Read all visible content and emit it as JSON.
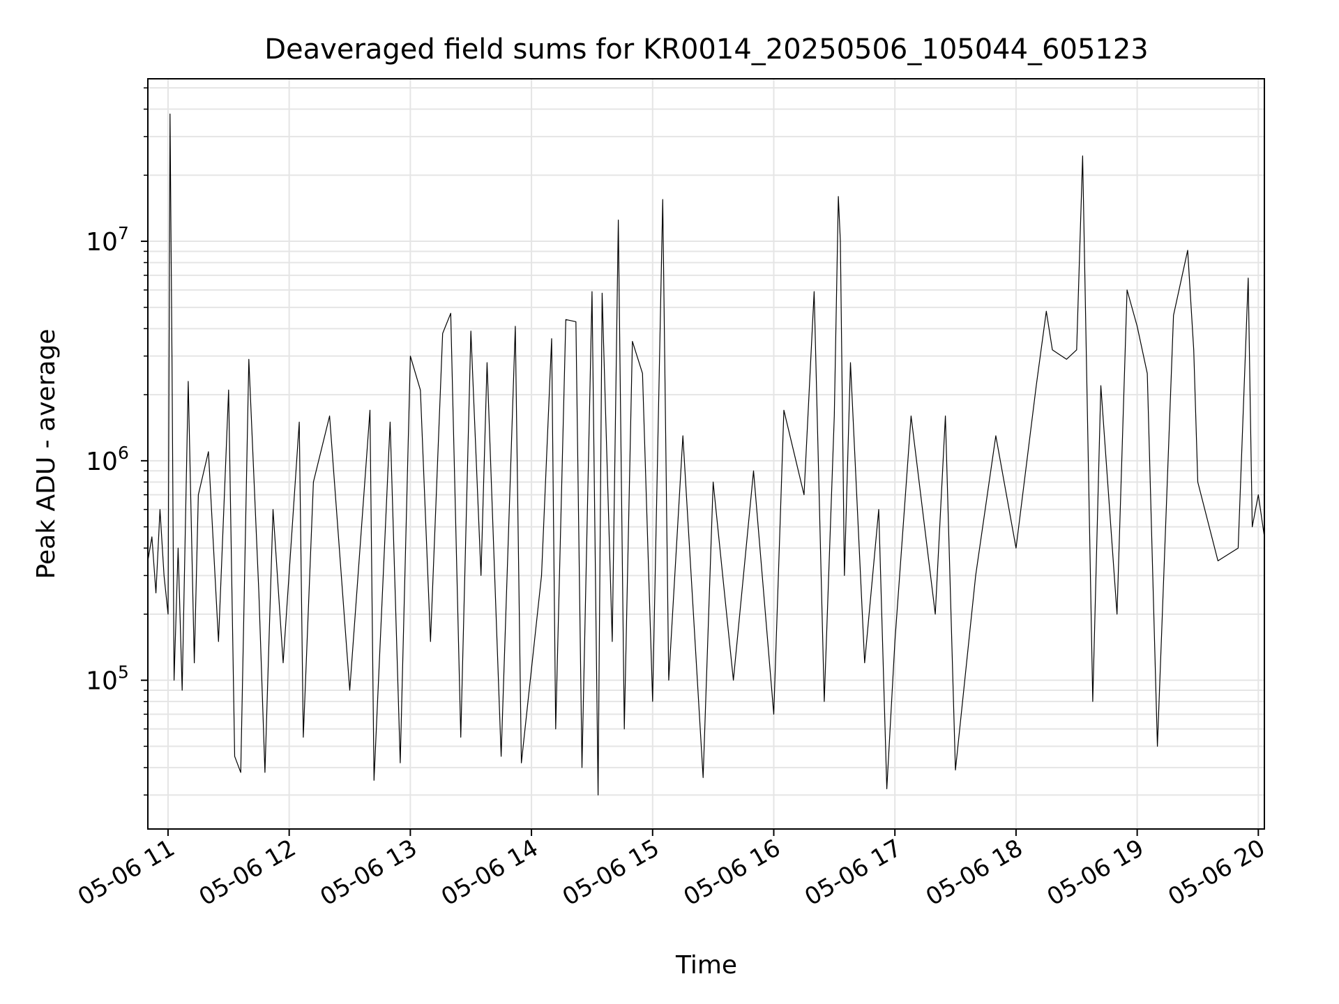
{
  "chart_data": {
    "type": "line",
    "title": "Deaveraged field sums for KR0014_20250506_105044_605123",
    "xlabel": "Time",
    "ylabel": "Peak ADU - average",
    "yscale": "log",
    "grid": true,
    "series_color": "#000000",
    "grid_color": "#e5e5e5",
    "xlim": [
      "2025-05-06T10:50",
      "2025-05-06T20:03"
    ],
    "ylim": [
      21000,
      55000000
    ],
    "x_ticks": [
      "05-06 11",
      "05-06 12",
      "05-06 13",
      "05-06 14",
      "05-06 15",
      "05-06 16",
      "05-06 17",
      "05-06 18",
      "05-06 19",
      "05-06 20"
    ],
    "y_ticks": [
      {
        "value": 100000,
        "base": "10",
        "exp": "5"
      },
      {
        "value": 1000000,
        "base": "10",
        "exp": "6"
      },
      {
        "value": 10000000,
        "base": "10",
        "exp": "7"
      }
    ],
    "series": [
      {
        "points": [
          [
            "2025-05-06T10:50",
            350000
          ],
          [
            "2025-05-06T10:52",
            450000
          ],
          [
            "2025-05-06T10:54",
            250000
          ],
          [
            "2025-05-06T10:56",
            600000
          ],
          [
            "2025-05-06T10:58",
            300000
          ],
          [
            "2025-05-06T11:00",
            200000
          ],
          [
            "2025-05-06T11:01",
            38000000
          ],
          [
            "2025-05-06T11:02",
            2700000
          ],
          [
            "2025-05-06T11:03",
            100000
          ],
          [
            "2025-05-06T11:05",
            400000
          ],
          [
            "2025-05-06T11:07",
            90000
          ],
          [
            "2025-05-06T11:10",
            2300000
          ],
          [
            "2025-05-06T11:13",
            120000
          ],
          [
            "2025-05-06T11:15",
            700000
          ],
          [
            "2025-05-06T11:20",
            1100000
          ],
          [
            "2025-05-06T11:25",
            150000
          ],
          [
            "2025-05-06T11:30",
            2100000
          ],
          [
            "2025-05-06T11:33",
            45000
          ],
          [
            "2025-05-06T11:36",
            38000
          ],
          [
            "2025-05-06T11:40",
            2900000
          ],
          [
            "2025-05-06T11:45",
            250000
          ],
          [
            "2025-05-06T11:48",
            38000
          ],
          [
            "2025-05-06T11:52",
            600000
          ],
          [
            "2025-05-06T11:57",
            120000
          ],
          [
            "2025-05-06T12:05",
            1500000
          ],
          [
            "2025-05-06T12:07",
            55000
          ],
          [
            "2025-05-06T12:12",
            800000
          ],
          [
            "2025-05-06T12:20",
            1600000
          ],
          [
            "2025-05-06T12:30",
            90000
          ],
          [
            "2025-05-06T12:40",
            1700000
          ],
          [
            "2025-05-06T12:42",
            35000
          ],
          [
            "2025-05-06T12:50",
            1500000
          ],
          [
            "2025-05-06T12:55",
            42000
          ],
          [
            "2025-05-06T13:00",
            3000000
          ],
          [
            "2025-05-06T13:05",
            2100000
          ],
          [
            "2025-05-06T13:10",
            150000
          ],
          [
            "2025-05-06T13:16",
            3800000
          ],
          [
            "2025-05-06T13:20",
            4700000
          ],
          [
            "2025-05-06T13:25",
            55000
          ],
          [
            "2025-05-06T13:30",
            3900000
          ],
          [
            "2025-05-06T13:35",
            300000
          ],
          [
            "2025-05-06T13:38",
            2800000
          ],
          [
            "2025-05-06T13:45",
            45000
          ],
          [
            "2025-05-06T13:52",
            4100000
          ],
          [
            "2025-05-06T13:55",
            42000
          ],
          [
            "2025-05-06T14:05",
            300000
          ],
          [
            "2025-05-06T14:10",
            3600000
          ],
          [
            "2025-05-06T14:12",
            60000
          ],
          [
            "2025-05-06T14:17",
            4400000
          ],
          [
            "2025-05-06T14:22",
            4300000
          ],
          [
            "2025-05-06T14:25",
            40000
          ],
          [
            "2025-05-06T14:30",
            5900000
          ],
          [
            "2025-05-06T14:33",
            30000
          ],
          [
            "2025-05-06T14:35",
            5800000
          ],
          [
            "2025-05-06T14:40",
            150000
          ],
          [
            "2025-05-06T14:43",
            12500000
          ],
          [
            "2025-05-06T14:46",
            60000
          ],
          [
            "2025-05-06T14:50",
            3500000
          ],
          [
            "2025-05-06T14:55",
            2500000
          ],
          [
            "2025-05-06T15:00",
            80000
          ],
          [
            "2025-05-06T15:05",
            15500000
          ],
          [
            "2025-05-06T15:08",
            100000
          ],
          [
            "2025-05-06T15:15",
            1300000
          ],
          [
            "2025-05-06T15:25",
            36000
          ],
          [
            "2025-05-06T15:30",
            800000
          ],
          [
            "2025-05-06T15:40",
            100000
          ],
          [
            "2025-05-06T15:50",
            900000
          ],
          [
            "2025-05-06T16:00",
            70000
          ],
          [
            "2025-05-06T16:05",
            1700000
          ],
          [
            "2025-05-06T16:15",
            700000
          ],
          [
            "2025-05-06T16:20",
            5900000
          ],
          [
            "2025-05-06T16:25",
            80000
          ],
          [
            "2025-05-06T16:30",
            1600000
          ],
          [
            "2025-05-06T16:32",
            16000000
          ],
          [
            "2025-05-06T16:33",
            10000000
          ],
          [
            "2025-05-06T16:35",
            300000
          ],
          [
            "2025-05-06T16:38",
            2800000
          ],
          [
            "2025-05-06T16:45",
            120000
          ],
          [
            "2025-05-06T16:52",
            600000
          ],
          [
            "2025-05-06T16:56",
            32000
          ],
          [
            "2025-05-06T17:00",
            150000
          ],
          [
            "2025-05-06T17:08",
            1600000
          ],
          [
            "2025-05-06T17:20",
            200000
          ],
          [
            "2025-05-06T17:25",
            1600000
          ],
          [
            "2025-05-06T17:30",
            39000
          ],
          [
            "2025-05-06T17:40",
            300000
          ],
          [
            "2025-05-06T17:50",
            1300000
          ],
          [
            "2025-05-06T18:00",
            400000
          ],
          [
            "2025-05-06T18:10",
            2200000
          ],
          [
            "2025-05-06T18:15",
            4800000
          ],
          [
            "2025-05-06T18:18",
            3200000
          ],
          [
            "2025-05-06T18:25",
            2900000
          ],
          [
            "2025-05-06T18:30",
            3200000
          ],
          [
            "2025-05-06T18:33",
            24500000
          ],
          [
            "2025-05-06T18:38",
            80000
          ],
          [
            "2025-05-06T18:42",
            2200000
          ],
          [
            "2025-05-06T18:50",
            200000
          ],
          [
            "2025-05-06T18:55",
            6000000
          ],
          [
            "2025-05-06T19:00",
            4100000
          ],
          [
            "2025-05-06T19:05",
            2500000
          ],
          [
            "2025-05-06T19:10",
            50000
          ],
          [
            "2025-05-06T19:18",
            4600000
          ],
          [
            "2025-05-06T19:25",
            9100000
          ],
          [
            "2025-05-06T19:28",
            3200000
          ],
          [
            "2025-05-06T19:30",
            800000
          ],
          [
            "2025-05-06T19:40",
            350000
          ],
          [
            "2025-05-06T19:50",
            400000
          ],
          [
            "2025-05-06T19:55",
            6800000
          ],
          [
            "2025-05-06T19:57",
            500000
          ],
          [
            "2025-05-06T20:00",
            700000
          ],
          [
            "2025-05-06T20:03",
            450000
          ]
        ]
      }
    ]
  }
}
